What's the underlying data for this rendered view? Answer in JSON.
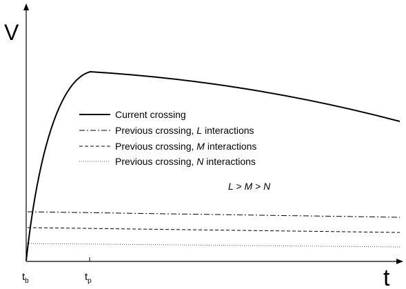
{
  "axes": {
    "y_label": "V",
    "x_label": "t"
  },
  "ticks": [
    {
      "base": "t",
      "sub": "b"
    },
    {
      "base": "t",
      "sub": "p"
    }
  ],
  "legend": [
    {
      "text": "Current crossing"
    },
    {
      "prefix": "Previous crossing, ",
      "var": "L",
      "suffix": " interactions"
    },
    {
      "prefix": "Previous crossing, ",
      "var": "M",
      "suffix": " interactions"
    },
    {
      "prefix": "Previous crossing, ",
      "var": "N",
      "suffix": " interactions"
    }
  ],
  "annotation": "L > M > N"
}
